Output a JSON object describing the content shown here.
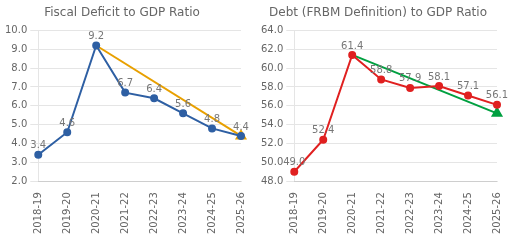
{
  "chart_data": [
    {
      "type": "line",
      "title": "Fiscal Deficit to GDP Ratio",
      "categories": [
        "2018-19",
        "2019-20",
        "2020-21",
        "2021-22",
        "2022-23",
        "2023-24",
        "2024-25",
        "2025-26"
      ],
      "series": [
        {
          "color": "#E8A000",
          "marker": "triangle",
          "x": [
            "2020-21",
            "2025-26"
          ],
          "values": [
            9.2,
            4.4
          ]
        },
        {
          "color": "#2E5FA3",
          "marker": "circle",
          "data_labels": true,
          "values": [
            3.4,
            4.6,
            9.2,
            6.7,
            6.4,
            5.6,
            4.8,
            4.4
          ]
        }
      ],
      "ylim": [
        2.0,
        10.0
      ],
      "yticks": [
        {
          "value": 2,
          "label": "2.0"
        },
        {
          "value": 3,
          "label": "3.0"
        },
        {
          "value": 4,
          "label": "4.0"
        },
        {
          "value": 5,
          "label": "5.0"
        },
        {
          "value": 6,
          "label": "6.0"
        },
        {
          "value": 7,
          "label": "7.0"
        },
        {
          "value": 8,
          "label": "8.0"
        },
        {
          "value": 9,
          "label": "9.0"
        },
        {
          "value": 10,
          "label": "10.0"
        }
      ],
      "grid": true
    },
    {
      "type": "line",
      "title": "Debt (FRBM Definition) to GDP Ratio",
      "categories": [
        "2018-19",
        "2019-20",
        "2020-21",
        "2021-22",
        "2022-23",
        "2023-24",
        "2024-25",
        "2025-26"
      ],
      "series": [
        {
          "color": "#00A040",
          "marker": "triangle",
          "x": [
            "2020-21",
            "2025-26"
          ],
          "values": [
            61.4,
            55.2
          ]
        },
        {
          "color": "#E02020",
          "marker": "circle",
          "data_labels": true,
          "values": [
            49.0,
            52.4,
            61.4,
            58.8,
            57.9,
            58.1,
            57.1,
            56.1
          ],
          "value_labels": [
            "49.0",
            "52.4",
            "61.4",
            "58.8",
            "57.9",
            "58.1",
            "57.1",
            "56.1"
          ]
        }
      ],
      "ylim": [
        48.0,
        64.0
      ],
      "yticks": [
        {
          "value": 48,
          "label": "48.0"
        },
        {
          "value": 50,
          "label": "50.0"
        },
        {
          "value": 52,
          "label": "52.0"
        },
        {
          "value": 54,
          "label": "54.0"
        },
        {
          "value": 56,
          "label": "56.0"
        },
        {
          "value": 58,
          "label": "58.0"
        },
        {
          "value": 60,
          "label": "60.0"
        },
        {
          "value": 62,
          "label": "62.0"
        },
        {
          "value": 64,
          "label": "64.0"
        }
      ],
      "grid": true
    }
  ]
}
